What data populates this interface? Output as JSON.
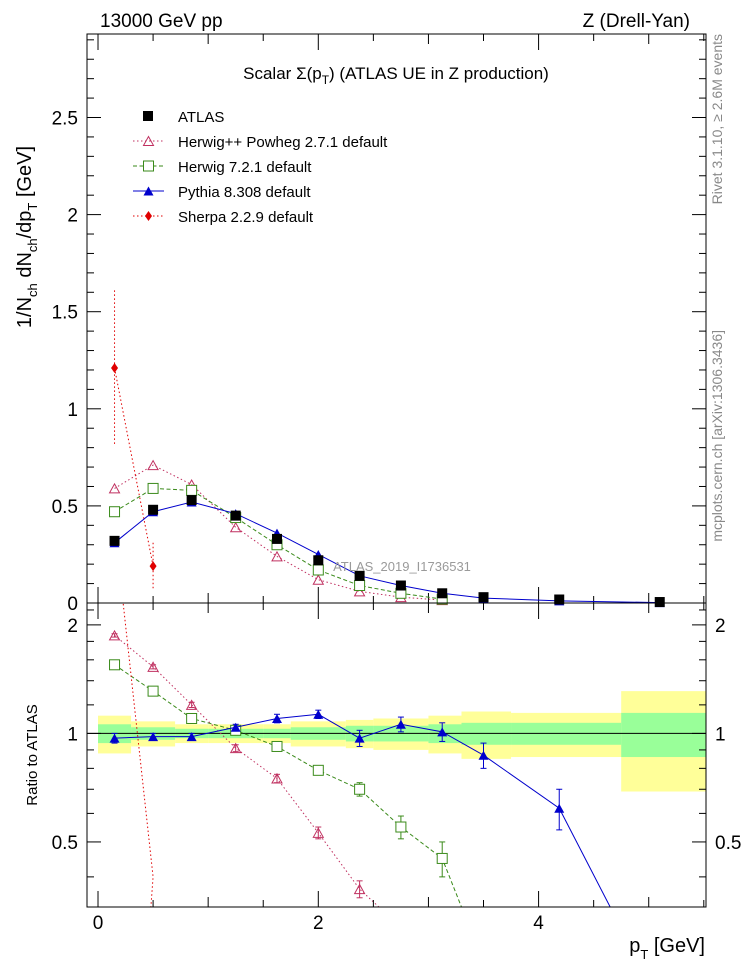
{
  "header": {
    "left": "13000 GeV pp",
    "right": "Z (Drell-Yan)"
  },
  "side_labels": {
    "rivet": "Rivet 3.1.10, ≥ 2.6M events",
    "mcplots": "mcplots.cern.ch [arXiv:1306.3436]"
  },
  "watermark": "ATLAS_2019_I1736531",
  "colors": {
    "atlas": "#000000",
    "herwigpp": "#c03060",
    "herwig7": "#3a8a1a",
    "pythia": "#0000cc",
    "sherpa": "#e00000",
    "band_inner": "#99ff99",
    "band_outer": "#ffff99"
  },
  "chart_data": [
    {
      "type": "scatter",
      "title_prefix": "Scalar ",
      "title_sigma": "Σ(p",
      "title_sub": "T",
      "title_suffix": ") (ATLAS UE in Z production)",
      "ylabel": "1/N_ch dN_ch/dp_T [GeV]",
      "ylabel_parts": [
        "1/N",
        "ch",
        " dN",
        "ch",
        "/dp",
        "T",
        " [GeV]"
      ],
      "xlim": [
        -0.1,
        5.52
      ],
      "ylim": [
        0,
        2.93
      ],
      "yticks": [
        0,
        0.5,
        1,
        1.5,
        2,
        2.5
      ],
      "ytick_labels": [
        "0",
        "0.5",
        "1",
        "1.5",
        "2",
        "2.5"
      ],
      "legend_position": "top-left",
      "series": [
        {
          "name": "ATLAS",
          "marker": "square-filled",
          "x": [
            0.15,
            0.5,
            0.85,
            1.25,
            1.625,
            2.0,
            2.375,
            2.75,
            3.125,
            3.5,
            4.1875,
            5.1
          ],
          "y": [
            0.32,
            0.48,
            0.53,
            0.45,
            0.33,
            0.22,
            0.14,
            0.09,
            0.05,
            0.03,
            0.018,
            0.005
          ],
          "line": "none"
        },
        {
          "name": "Herwig++ Powheg 2.7.1 default",
          "marker": "triangle-open",
          "x": [
            0.15,
            0.5,
            0.85,
            1.25,
            1.625,
            2.0,
            2.375,
            2.75,
            3.125
          ],
          "y": [
            0.59,
            0.71,
            0.61,
            0.39,
            0.24,
            0.12,
            0.06,
            0.03,
            0.015
          ],
          "line": "dotted"
        },
        {
          "name": "Herwig 7.2.1 default",
          "marker": "square-open",
          "x": [
            0.15,
            0.5,
            0.85,
            1.25,
            1.625,
            2.0,
            2.375,
            2.75,
            3.125
          ],
          "y": [
            0.47,
            0.59,
            0.58,
            0.44,
            0.3,
            0.17,
            0.09,
            0.05,
            0.02
          ],
          "line": "dashed"
        },
        {
          "name": "Pythia 8.308 default",
          "marker": "triangle-filled",
          "x": [
            0.15,
            0.5,
            0.85,
            1.25,
            1.625,
            2.0,
            2.375,
            2.75,
            3.125,
            3.5,
            4.1875,
            5.1
          ],
          "y": [
            0.31,
            0.47,
            0.52,
            0.46,
            0.36,
            0.25,
            0.14,
            0.09,
            0.05,
            0.025,
            0.011,
            0.002
          ],
          "line": "solid"
        },
        {
          "name": "Sherpa 2.2.9 default",
          "marker": "diamond-filled",
          "x": [
            0.15,
            0.5
          ],
          "y": [
            1.21,
            0.19
          ],
          "yerr": [
            0.4,
            0.12
          ],
          "line": "dotted"
        }
      ]
    },
    {
      "type": "line",
      "ylabel": "Ratio to ATLAS",
      "xlabel_main": "p",
      "xlabel_sub": "T",
      "xlabel_unit": " [GeV]",
      "xlim": [
        -0.1,
        5.52
      ],
      "ylim": [
        0.33,
        2.3
      ],
      "yticks": [
        0.5,
        1,
        2
      ],
      "ytick_labels": [
        "0.5",
        "1",
        "2"
      ],
      "xticks": [
        0,
        2,
        4
      ],
      "xtick_labels": [
        "0",
        "2",
        "4"
      ],
      "bins": [
        {
          "lo": 0.0,
          "hi": 0.3,
          "inner": 0.06,
          "outer": 0.12
        },
        {
          "lo": 0.3,
          "hi": 0.7,
          "inner": 0.04,
          "outer": 0.08
        },
        {
          "lo": 0.7,
          "hi": 1.0,
          "inner": 0.03,
          "outer": 0.06
        },
        {
          "lo": 1.0,
          "hi": 1.5,
          "inner": 0.03,
          "outer": 0.06
        },
        {
          "lo": 1.5,
          "hi": 1.75,
          "inner": 0.03,
          "outer": 0.06
        },
        {
          "lo": 1.75,
          "hi": 2.25,
          "inner": 0.04,
          "outer": 0.08
        },
        {
          "lo": 2.25,
          "hi": 2.5,
          "inner": 0.05,
          "outer": 0.09
        },
        {
          "lo": 2.5,
          "hi": 3.0,
          "inner": 0.05,
          "outer": 0.1
        },
        {
          "lo": 3.0,
          "hi": 3.3,
          "inner": 0.06,
          "outer": 0.12
        },
        {
          "lo": 3.3,
          "hi": 3.75,
          "inner": 0.07,
          "outer": 0.15
        },
        {
          "lo": 3.75,
          "hi": 4.75,
          "inner": 0.07,
          "outer": 0.14
        },
        {
          "lo": 4.75,
          "hi": 5.52,
          "inner": 0.14,
          "outer": 0.31
        }
      ],
      "series": [
        {
          "name": "Herwig++ Powheg 2.7.1 default",
          "x": [
            0.15,
            0.5,
            0.85,
            1.25,
            1.625,
            2.0,
            2.375
          ],
          "y": [
            1.87,
            1.53,
            1.2,
            0.91,
            0.75,
            0.53,
            0.37
          ],
          "yerr": [
            0.02,
            0.02,
            0.02,
            0.02,
            0.02,
            0.02,
            0.02
          ],
          "extend_to": [
            2.55,
            0.33
          ]
        },
        {
          "name": "Herwig 7.2.1 default",
          "x": [
            0.15,
            0.5,
            0.85,
            1.25,
            1.625,
            2.0,
            2.375,
            2.75,
            3.125
          ],
          "y": [
            1.55,
            1.31,
            1.1,
            1.02,
            0.92,
            0.79,
            0.7,
            0.55,
            0.45
          ],
          "yerr": [
            0.02,
            0.02,
            0.02,
            0.02,
            0.02,
            0.02,
            0.03,
            0.04,
            0.05
          ],
          "extend_to": [
            3.3,
            0.33
          ]
        },
        {
          "name": "Pythia 8.308 default",
          "x": [
            0.15,
            0.5,
            0.85,
            1.25,
            1.625,
            2.0,
            2.375,
            2.75,
            3.125,
            3.5,
            4.1875
          ],
          "y": [
            0.97,
            0.98,
            0.98,
            1.04,
            1.1,
            1.13,
            0.97,
            1.06,
            1.01,
            0.87,
            0.62
          ],
          "yerr": [
            0.03,
            0.02,
            0.02,
            0.02,
            0.03,
            0.03,
            0.05,
            0.05,
            0.06,
            0.07,
            0.08
          ],
          "extend_to": [
            4.65,
            0.33
          ]
        },
        {
          "name": "Sherpa 2.2.9 default",
          "x": [
            0.15,
            0.5
          ],
          "y": [
            3.8,
            0.4
          ],
          "line_only": true,
          "extend_to": [
            0.48,
            0.33
          ]
        }
      ]
    }
  ]
}
